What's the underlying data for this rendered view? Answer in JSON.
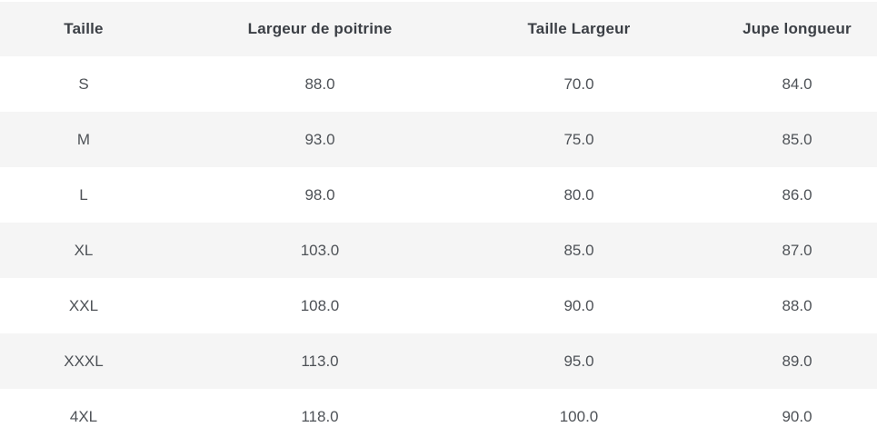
{
  "colors": {
    "stripe_background": "#f5f5f5",
    "row_background": "#ffffff",
    "header_text": "#3b3f45",
    "body_text": "#4e5257"
  },
  "table": {
    "columns": [
      "Taille",
      "Largeur de poitrine",
      "Taille Largeur",
      "Jupe longueur"
    ],
    "rows": [
      {
        "cells": [
          "S",
          "88.0",
          "70.0",
          "84.0"
        ]
      },
      {
        "cells": [
          "M",
          "93.0",
          "75.0",
          "85.0"
        ]
      },
      {
        "cells": [
          "L",
          "98.0",
          "80.0",
          "86.0"
        ]
      },
      {
        "cells": [
          "XL",
          "103.0",
          "85.0",
          "87.0"
        ]
      },
      {
        "cells": [
          "XXL",
          "108.0",
          "90.0",
          "88.0"
        ]
      },
      {
        "cells": [
          "XXXL",
          "113.0",
          "95.0",
          "89.0"
        ]
      },
      {
        "cells": [
          "4XL",
          "118.0",
          "100.0",
          "90.0"
        ]
      }
    ]
  }
}
